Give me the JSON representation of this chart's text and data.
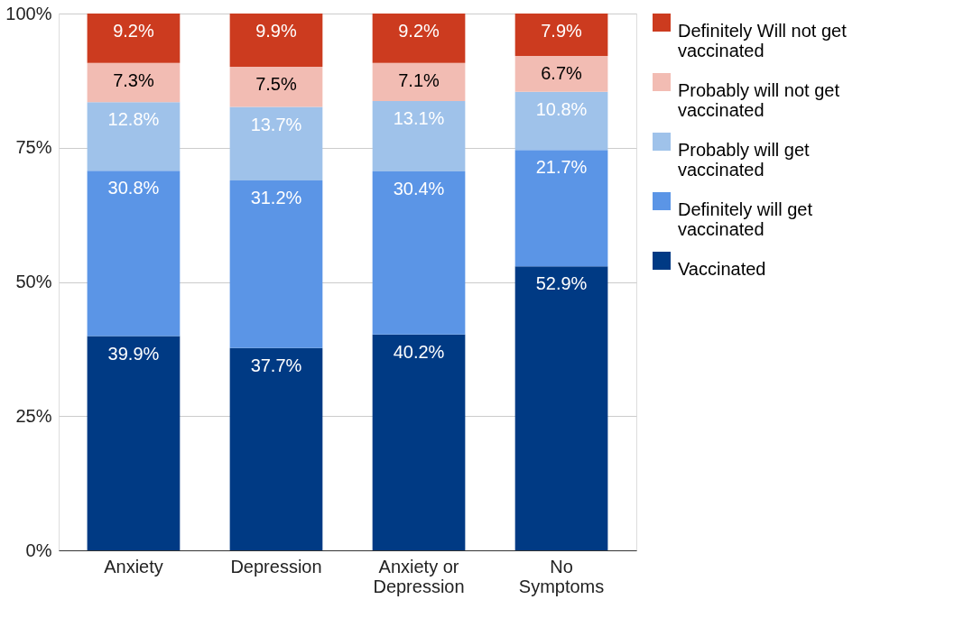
{
  "chart_data": {
    "type": "bar",
    "stacked": true,
    "categories": [
      "Anxiety",
      "Depression",
      "Anxiety or Depression",
      "No Symptoms"
    ],
    "series": [
      {
        "name": "Vaccinated",
        "color": "#003a84",
        "values": [
          39.9,
          37.7,
          40.2,
          52.9
        ],
        "value_labels": [
          "39.9%",
          "37.7%",
          "40.2%",
          "52.9%"
        ]
      },
      {
        "name": "Definitely will get vaccinated",
        "color": "#5b95e6",
        "values": [
          30.8,
          31.2,
          30.4,
          21.7
        ],
        "value_labels": [
          "30.8%",
          "31.2%",
          "30.4%",
          "21.7%"
        ]
      },
      {
        "name": "Probably will get vaccinated",
        "color": "#9fc2ea",
        "values": [
          12.8,
          13.7,
          13.1,
          10.8
        ],
        "value_labels": [
          "12.8%",
          "13.7%",
          "13.1%",
          "10.8%"
        ]
      },
      {
        "name": "Probably will not get vaccinated",
        "color": "#f2bcb3",
        "values": [
          7.3,
          7.5,
          7.1,
          6.7
        ],
        "value_labels": [
          "7.3%",
          "7.5%",
          "7.1%",
          "6.7%"
        ]
      },
      {
        "name": "Definitely Will not get vaccinated",
        "color": "#cc3b1f",
        "values": [
          9.2,
          9.9,
          9.2,
          7.9
        ],
        "value_labels": [
          "9.2%",
          "9.9%",
          "9.2%",
          "7.9%"
        ]
      }
    ],
    "ylim": [
      0,
      100
    ],
    "yticks": [
      {
        "value": 0,
        "label": "0%"
      },
      {
        "value": 25,
        "label": "25%"
      },
      {
        "value": 50,
        "label": "50%"
      },
      {
        "value": 75,
        "label": "75%"
      },
      {
        "value": 100,
        "label": "100%"
      }
    ],
    "grid": "y",
    "legend": "right"
  }
}
